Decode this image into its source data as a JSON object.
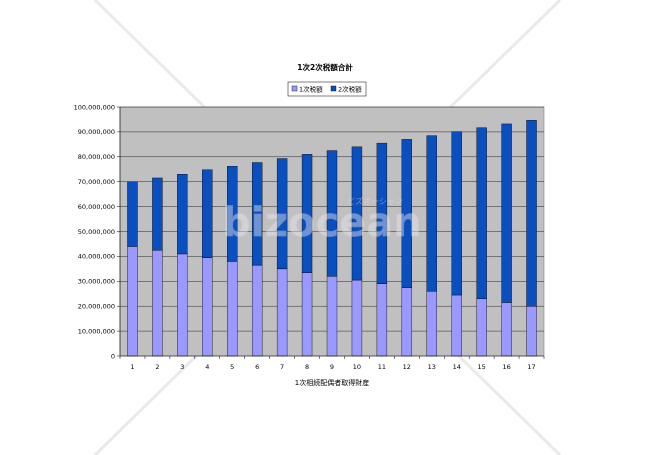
{
  "chart_data": {
    "type": "bar",
    "stacked": true,
    "title": "1次2次税額合計",
    "xlabel": "1次相続配偶者取得財産",
    "ylabel": "",
    "categories": [
      "1",
      "2",
      "3",
      "4",
      "5",
      "6",
      "7",
      "8",
      "9",
      "10",
      "11",
      "12",
      "13",
      "14",
      "15",
      "16",
      "17"
    ],
    "y_ticks": [
      "0",
      "10,000,000",
      "20,000,000",
      "30,000,000",
      "40,000,000",
      "50,000,000",
      "60,000,000",
      "70,000,000",
      "80,000,000",
      "90,000,000",
      "100,000,000"
    ],
    "ylim": [
      0,
      100000000
    ],
    "grid": true,
    "legend_position": "top",
    "series": [
      {
        "name": "1次税額",
        "color": "#9999ff",
        "values": [
          44000000,
          42500000,
          41000000,
          39500000,
          38000000,
          36500000,
          35000000,
          33500000,
          32000000,
          30500000,
          29000000,
          27500000,
          26000000,
          24500000,
          23000000,
          21500000,
          20000000
        ]
      },
      {
        "name": "2次税額",
        "color": "#0a4fbf",
        "values": [
          26000000,
          29000000,
          32000000,
          35300000,
          38200000,
          41200000,
          44300000,
          47500000,
          50500000,
          53500000,
          56500000,
          59500000,
          62500000,
          65600000,
          68700000,
          71700000,
          74700000
        ]
      }
    ],
    "plot_background": "#c0c0c0"
  },
  "watermark": {
    "text": "bizocean",
    "subtext": "ビズオーシャン"
  }
}
